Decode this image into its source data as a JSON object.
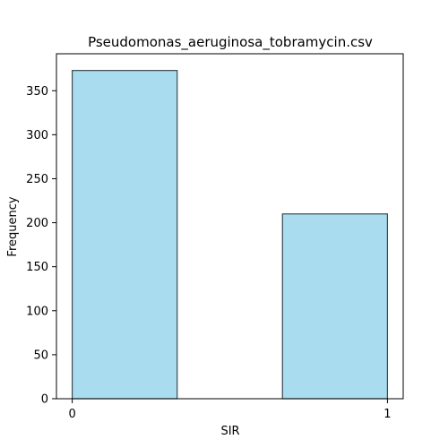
{
  "chart_data": {
    "type": "bar",
    "title": "Pseudomonas_aeruginosa_tobramycin.csv",
    "xlabel": "SIR",
    "ylabel": "Frequency",
    "bins": [
      {
        "start": 0,
        "end": 0.333,
        "value": 373
      },
      {
        "start": 0.667,
        "end": 1,
        "value": 210
      }
    ],
    "xlim": [
      -0.05,
      1.05
    ],
    "ylim": [
      0,
      392
    ],
    "xticks": [
      0,
      1
    ],
    "yticks": [
      0,
      50,
      100,
      150,
      200,
      250,
      300,
      350
    ],
    "bar_fill": "#a9dcef",
    "bar_edge": "#3a4a50",
    "grid": false
  }
}
